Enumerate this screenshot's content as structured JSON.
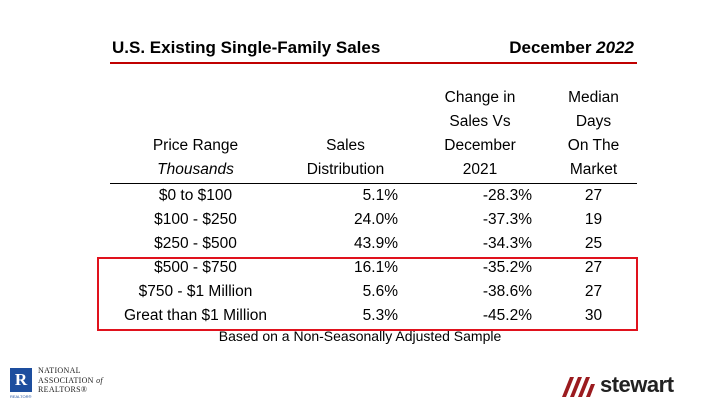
{
  "title": {
    "left": "U.S. Existing Single-Family Sales",
    "month": "December",
    "year": "2022"
  },
  "headers": {
    "range": [
      "Price Range",
      "Thousands"
    ],
    "distribution": [
      "Sales",
      "Distribution"
    ],
    "change": [
      "Change in",
      "Sales Vs",
      "December",
      "2021"
    ],
    "days": [
      "Median",
      "Days",
      "On The",
      "Market"
    ]
  },
  "rows": [
    {
      "range": "$0 to $100",
      "distribution": "5.1%",
      "change": "-28.3%",
      "days": "27"
    },
    {
      "range": "$100 - $250",
      "distribution": "24.0%",
      "change": "-37.3%",
      "days": "19"
    },
    {
      "range": "$250 - $500",
      "distribution": "43.9%",
      "change": "-34.3%",
      "days": "25"
    },
    {
      "range": "$500 - $750",
      "distribution": "16.1%",
      "change": "-35.2%",
      "days": "27"
    },
    {
      "range": "$750 - $1 Million",
      "distribution": "5.6%",
      "change": "-38.6%",
      "days": "27"
    },
    {
      "range": "Great than $1 Million",
      "distribution": "5.3%",
      "change": "-45.2%",
      "days": "30"
    }
  ],
  "footnote": "Based on a Non-Seasonally Adjusted Sample",
  "logos": {
    "nar_mark": "R",
    "nar_line1": "NATIONAL",
    "nar_line2": "ASSOCIATION",
    "nar_of": "of",
    "nar_line3": "REALTORS®",
    "nar_sub": "REALTOR®",
    "stewart": "stewart"
  },
  "colors": {
    "title_rule": "#c00000",
    "highlight_box": "#e0121d",
    "nar_blue": "#1d4e9e",
    "stewart_red": "#9b1b1f"
  }
}
